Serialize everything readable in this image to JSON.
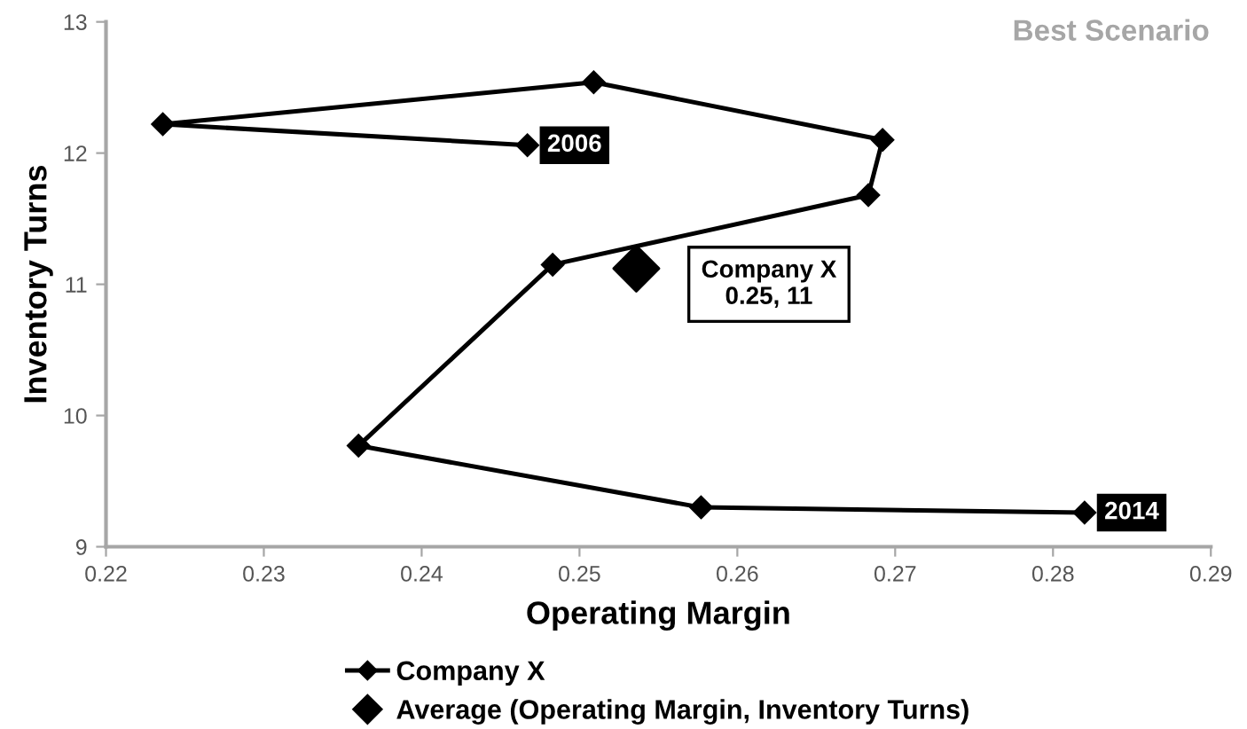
{
  "chart_data": {
    "type": "line",
    "xlabel": "Operating Margin",
    "ylabel": "Inventory Turns",
    "series": [
      {
        "name": "Company X",
        "color": "#000000",
        "marker": "diamond",
        "x": [
          0.2467,
          0.2236,
          0.2509,
          0.2692,
          0.2683,
          0.2483,
          0.236,
          0.2577,
          0.282
        ],
        "values": [
          12.06,
          12.22,
          12.54,
          12.1,
          11.68,
          11.15,
          9.77,
          9.3,
          9.26
        ]
      },
      {
        "name": "Average (Operating Margin, Inventory Turns)",
        "type": "scatter",
        "color": "#000000",
        "marker": "diamond",
        "x": [
          0.2536
        ],
        "values": [
          11.12
        ]
      }
    ],
    "annotations": [
      {
        "text": "2006",
        "x": 0.2467,
        "y": 12.06
      },
      {
        "text": "2014",
        "x": 0.282,
        "y": 9.26
      },
      "Company X\n0.25, 11",
      "Best Scenario"
    ],
    "xlim": [
      0.22,
      0.29
    ],
    "xticks": [
      0.22,
      0.23,
      0.24,
      0.25,
      0.26,
      0.27,
      0.28,
      0.29
    ],
    "ylim": [
      9,
      13
    ],
    "yticks": [
      9,
      10,
      11,
      12,
      13
    ],
    "grid": false,
    "legend": "bottom"
  }
}
